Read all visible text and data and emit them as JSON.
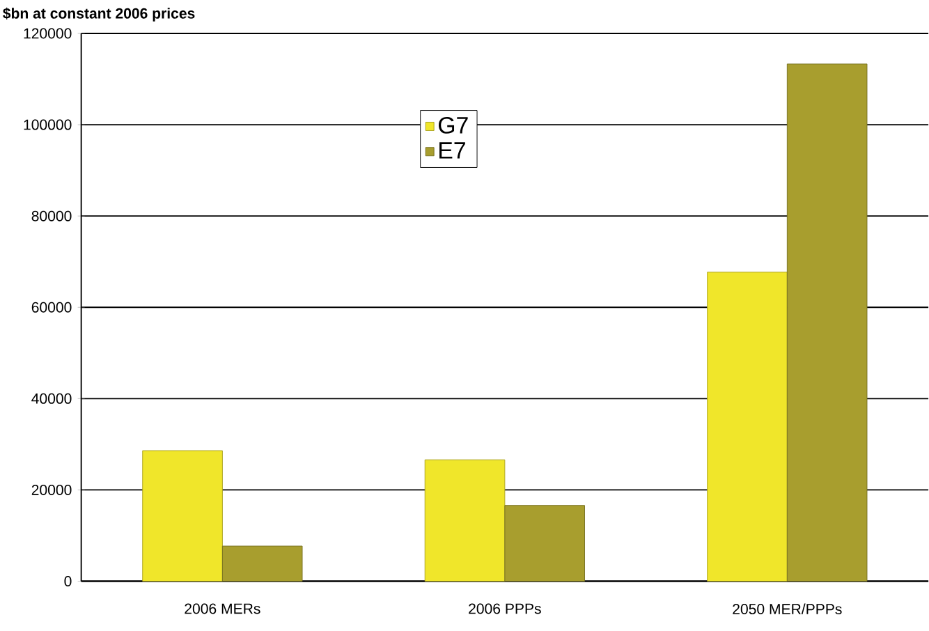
{
  "chart_data": {
    "type": "bar",
    "ylabel": "$bn at constant 2006 prices",
    "categories": [
      "2006 MERs",
      "2006 PPPs",
      "2050 MER/PPPs"
    ],
    "series": [
      {
        "name": "G7",
        "color": "#f0e62a",
        "values": [
          28600,
          26600,
          67700
        ]
      },
      {
        "name": "E7",
        "color": "#a89e2e",
        "values": [
          7700,
          16600,
          113300
        ]
      }
    ],
    "ylim": [
      0,
      120000
    ],
    "yticks": [
      0,
      20000,
      40000,
      60000,
      80000,
      100000,
      120000
    ],
    "grid": "y",
    "legend": "top"
  }
}
